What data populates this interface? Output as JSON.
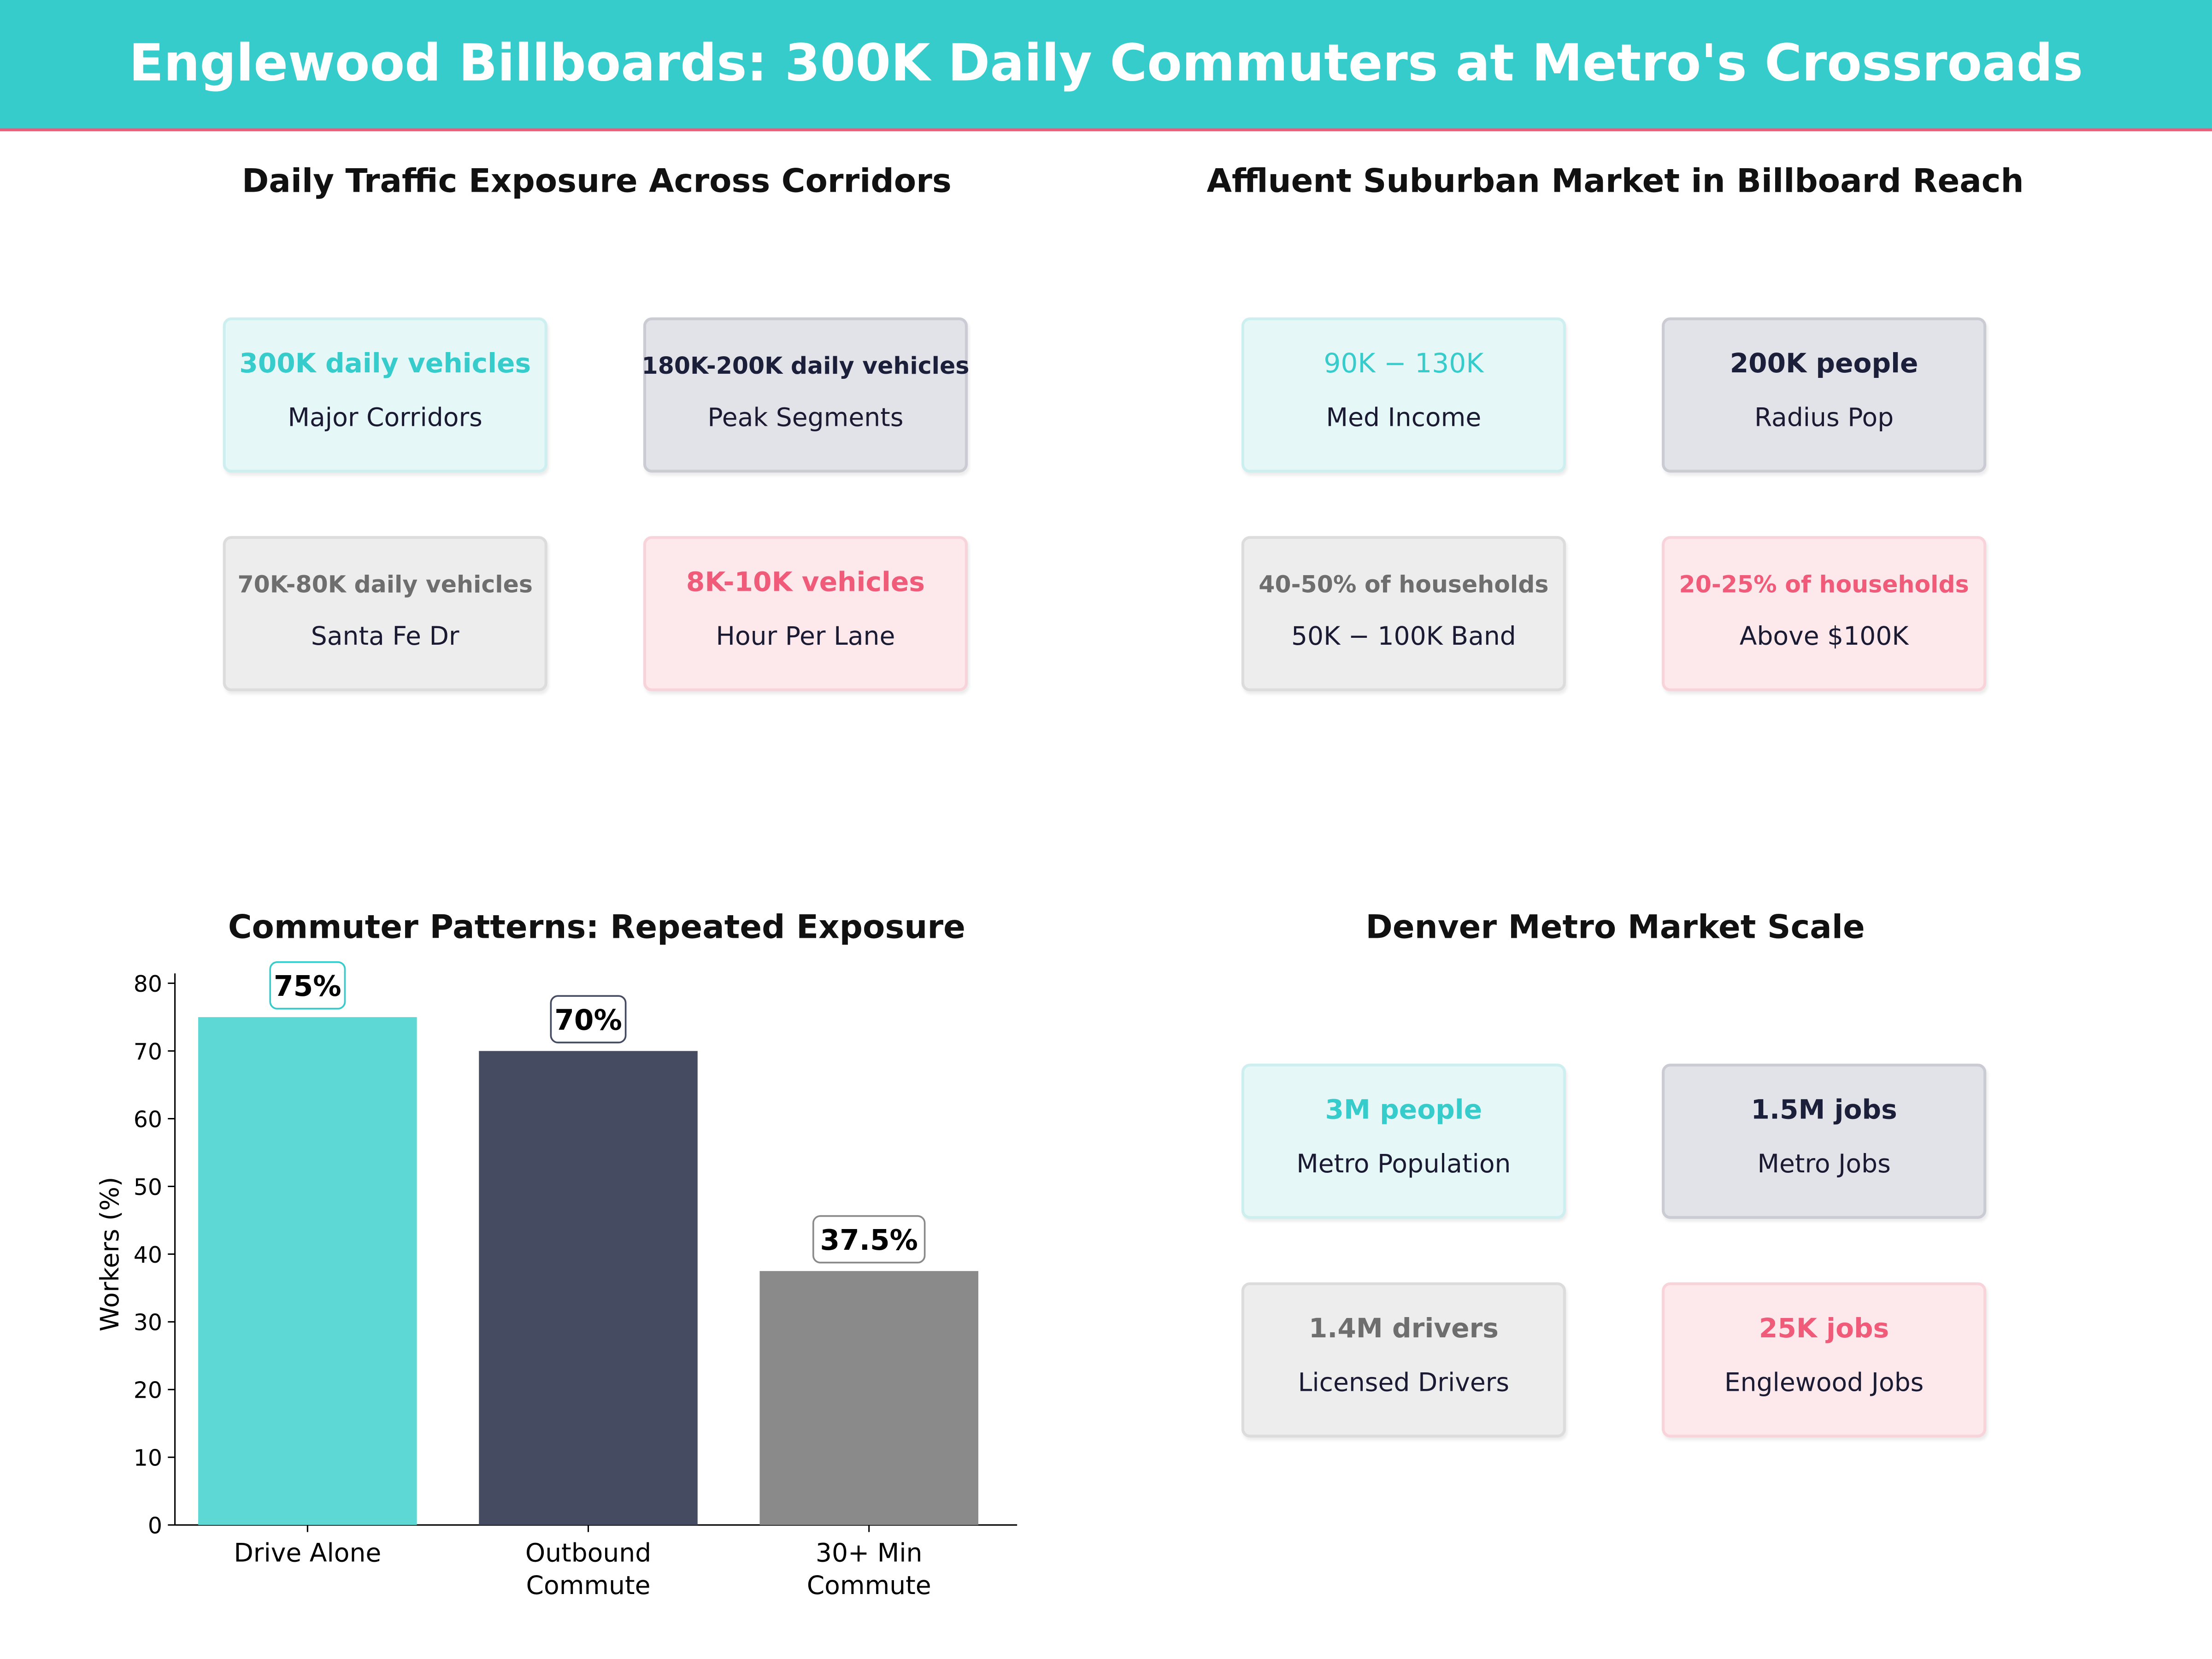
{
  "header": {
    "title": "Englewood Billboards: 300K Daily Commuters at Metro's Crossroads",
    "color": "#36CCCC",
    "accent": "#EF5B78"
  },
  "panels": {
    "traffic": {
      "title": "Daily Traffic Exposure Across Corridors",
      "cards": [
        {
          "value": "300K daily vehicles",
          "label": "Major Corridors"
        },
        {
          "value": "180K-200K daily vehicles",
          "label": "Peak Segments"
        },
        {
          "value": "70K-80K daily vehicles",
          "label": "Santa Fe Dr"
        },
        {
          "value": "8K-10K vehicles",
          "label": "Hour Per Lane"
        }
      ]
    },
    "market": {
      "title": "Affluent Suburban Market in Billboard Reach",
      "cards": [
        {
          "value": "90K − 130K",
          "label": "Med Income"
        },
        {
          "value": "200K people",
          "label": "Radius Pop"
        },
        {
          "value": "40-50% of households",
          "label": "50K − 100K Band"
        },
        {
          "value": "20-25% of households",
          "label": "Above $100K"
        }
      ]
    },
    "metro": {
      "title": "Denver Metro Market Scale",
      "cards": [
        {
          "value": "3M people",
          "label": "Metro Population"
        },
        {
          "value": "1.5M jobs",
          "label": "Metro Jobs"
        },
        {
          "value": "1.4M drivers",
          "label": "Licensed Drivers"
        },
        {
          "value": "25K jobs",
          "label": "Englewood Jobs"
        }
      ]
    }
  },
  "chart_data": {
    "type": "bar",
    "title": "Commuter Patterns: Repeated Exposure",
    "xlabel": "",
    "ylabel": "Workers (%)",
    "categories": [
      "Drive Alone",
      "Outbound\nCommute",
      "30+ Min\nCommute"
    ],
    "values": [
      75,
      70,
      37.5
    ],
    "data_labels": [
      "75%",
      "70%",
      "37.5%"
    ],
    "colors": [
      "#5DD8D5",
      "#454B60",
      "#8A8A8A"
    ],
    "label_border_colors": [
      "#36CCCC",
      "#454B60",
      "#8A8A8A"
    ],
    "ylim": [
      0,
      80
    ],
    "yticks": [
      0,
      10,
      20,
      30,
      40,
      50,
      60,
      70,
      80
    ],
    "grid": false
  }
}
